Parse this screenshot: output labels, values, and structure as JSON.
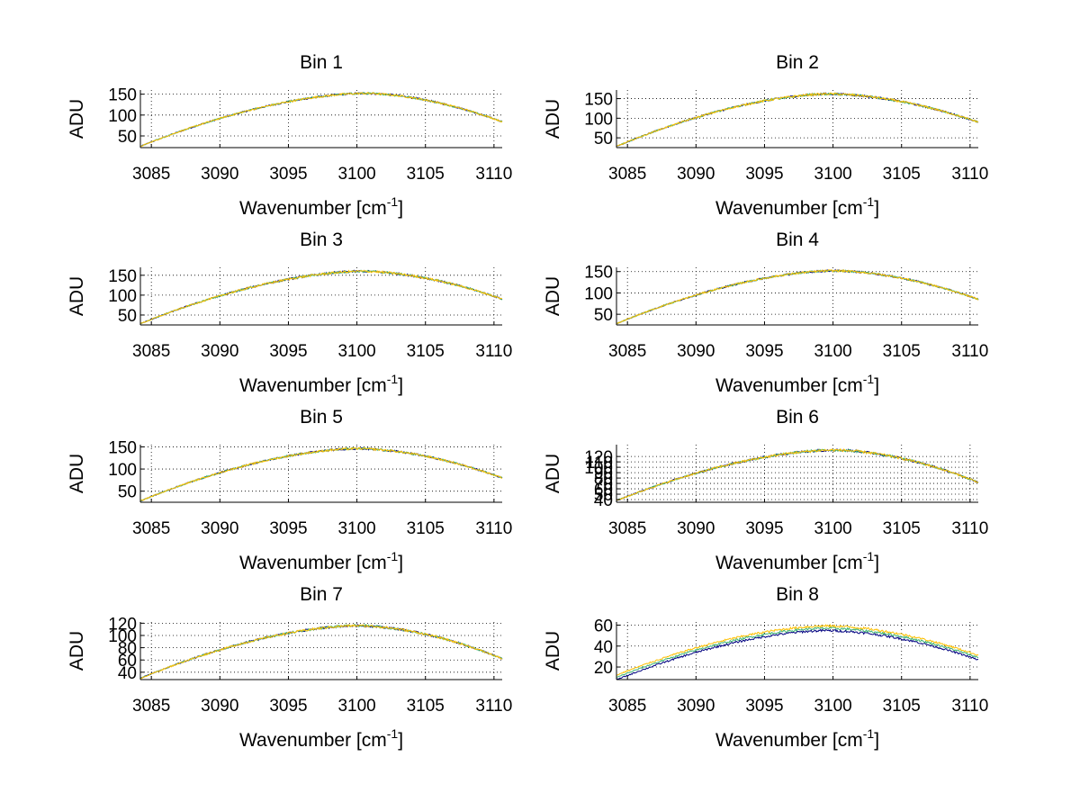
{
  "figure": {
    "background": "#ffffff"
  },
  "chart_data": [
    {
      "type": "line",
      "title": "Bin 1",
      "xlabel": "Wavenumber [cm",
      "xlabel_sup": "-1",
      "xlabel_end": "]",
      "ylabel": "ADU",
      "xlim": [
        3084.2,
        3110.6
      ],
      "ylim": [
        22,
        160
      ],
      "xticks": [
        3085,
        3090,
        3095,
        3100,
        3105,
        3110
      ],
      "yticks": [
        50,
        100,
        150
      ],
      "grid": true,
      "peak_x": 3100.5,
      "peak_y": 152,
      "start_y": 25,
      "end_y": 84,
      "noise": 2.5,
      "series_colors": [
        "#000080",
        "#3cb371",
        "#ffc000"
      ]
    },
    {
      "type": "line",
      "title": "Bin 2",
      "xlabel": "Wavenumber [cm",
      "xlabel_sup": "-1",
      "xlabel_end": "]",
      "ylabel": "ADU",
      "xlim": [
        3084.2,
        3110.6
      ],
      "ylim": [
        25,
        172
      ],
      "xticks": [
        3085,
        3090,
        3095,
        3100,
        3105,
        3110
      ],
      "yticks": [
        50,
        100,
        150
      ],
      "grid": true,
      "peak_x": 3099.7,
      "peak_y": 162,
      "start_y": 28,
      "end_y": 90,
      "noise": 3,
      "series_colors": [
        "#000080",
        "#3cb371",
        "#ffc000"
      ]
    },
    {
      "type": "line",
      "title": "Bin 3",
      "xlabel": "Wavenumber [cm",
      "xlabel_sup": "-1",
      "xlabel_end": "]",
      "ylabel": "ADU",
      "xlim": [
        3084.2,
        3110.6
      ],
      "ylim": [
        25,
        170
      ],
      "xticks": [
        3085,
        3090,
        3095,
        3100,
        3105,
        3110
      ],
      "yticks": [
        50,
        100,
        150
      ],
      "grid": true,
      "peak_x": 3100.3,
      "peak_y": 160,
      "start_y": 28,
      "end_y": 90,
      "noise": 3,
      "series_colors": [
        "#000080",
        "#3cb371",
        "#ffc000"
      ]
    },
    {
      "type": "line",
      "title": "Bin 4",
      "xlabel": "Wavenumber [cm",
      "xlabel_sup": "-1",
      "xlabel_end": "]",
      "ylabel": "ADU",
      "xlim": [
        3084.2,
        3110.6
      ],
      "ylim": [
        25,
        160
      ],
      "xticks": [
        3085,
        3090,
        3095,
        3100,
        3105,
        3110
      ],
      "yticks": [
        50,
        100,
        150
      ],
      "grid": true,
      "peak_x": 3100.0,
      "peak_y": 152,
      "start_y": 28,
      "end_y": 85,
      "noise": 2.5,
      "series_colors": [
        "#000080",
        "#3cb371",
        "#ffc000"
      ]
    },
    {
      "type": "line",
      "title": "Bin 5",
      "xlabel": "Wavenumber [cm",
      "xlabel_sup": "-1",
      "xlabel_end": "]",
      "ylabel": "ADU",
      "xlim": [
        3084.2,
        3110.6
      ],
      "ylim": [
        25,
        155
      ],
      "xticks": [
        3085,
        3090,
        3095,
        3100,
        3105,
        3110
      ],
      "yticks": [
        50,
        100,
        150
      ],
      "grid": true,
      "peak_x": 3100.0,
      "peak_y": 146,
      "start_y": 28,
      "end_y": 80,
      "noise": 2.5,
      "series_colors": [
        "#000080",
        "#3cb371",
        "#ffc000"
      ]
    },
    {
      "type": "line",
      "title": "Bin 6",
      "xlabel": "Wavenumber [cm",
      "xlabel_sup": "-1",
      "xlabel_end": "]",
      "ylabel": "ADU",
      "xlim": [
        3084.2,
        3110.6
      ],
      "ylim": [
        35,
        142
      ],
      "xticks": [
        3085,
        3090,
        3095,
        3100,
        3105,
        3110
      ],
      "yticks": [
        40,
        50,
        60,
        70,
        80,
        90,
        100,
        110,
        120
      ],
      "ytick_labels": [
        "40",
        "50",
        "60",
        "70",
        "80",
        "90",
        "100",
        "110",
        "120"
      ],
      "grid": true,
      "peak_x": 3100.0,
      "peak_y": 132,
      "start_y": 38,
      "end_y": 72,
      "noise": 2.5,
      "series_colors": [
        "#000080",
        "#3cb371",
        "#ffc000"
      ]
    },
    {
      "type": "line",
      "title": "Bin 7",
      "xlabel": "Wavenumber [cm",
      "xlabel_sup": "-1",
      "xlabel_end": "]",
      "ylabel": "ADU",
      "xlim": [
        3084.2,
        3110.6
      ],
      "ylim": [
        28,
        122
      ],
      "xticks": [
        3085,
        3090,
        3095,
        3100,
        3105,
        3110
      ],
      "yticks": [
        40,
        60,
        80,
        100,
        120
      ],
      "grid": true,
      "peak_x": 3100.0,
      "peak_y": 116,
      "start_y": 30,
      "end_y": 62,
      "noise": 2,
      "series_colors": [
        "#000080",
        "#3cb371",
        "#ffc000"
      ]
    },
    {
      "type": "line",
      "title": "Bin 8",
      "xlabel": "Wavenumber [cm",
      "xlabel_sup": "-1",
      "xlabel_end": "]",
      "ylabel": "ADU",
      "xlim": [
        3084.2,
        3110.6
      ],
      "ylim": [
        8,
        63
      ],
      "xticks": [
        3085,
        3090,
        3095,
        3100,
        3105,
        3110
      ],
      "yticks": [
        20,
        40,
        60
      ],
      "grid": true,
      "peak_x": 3099.5,
      "peak_y": 57,
      "start_y": 10,
      "end_y": 29,
      "noise": 1.2,
      "spread": 2.2,
      "series_colors": [
        "#000080",
        "#3cb371",
        "#ffc000"
      ]
    }
  ]
}
